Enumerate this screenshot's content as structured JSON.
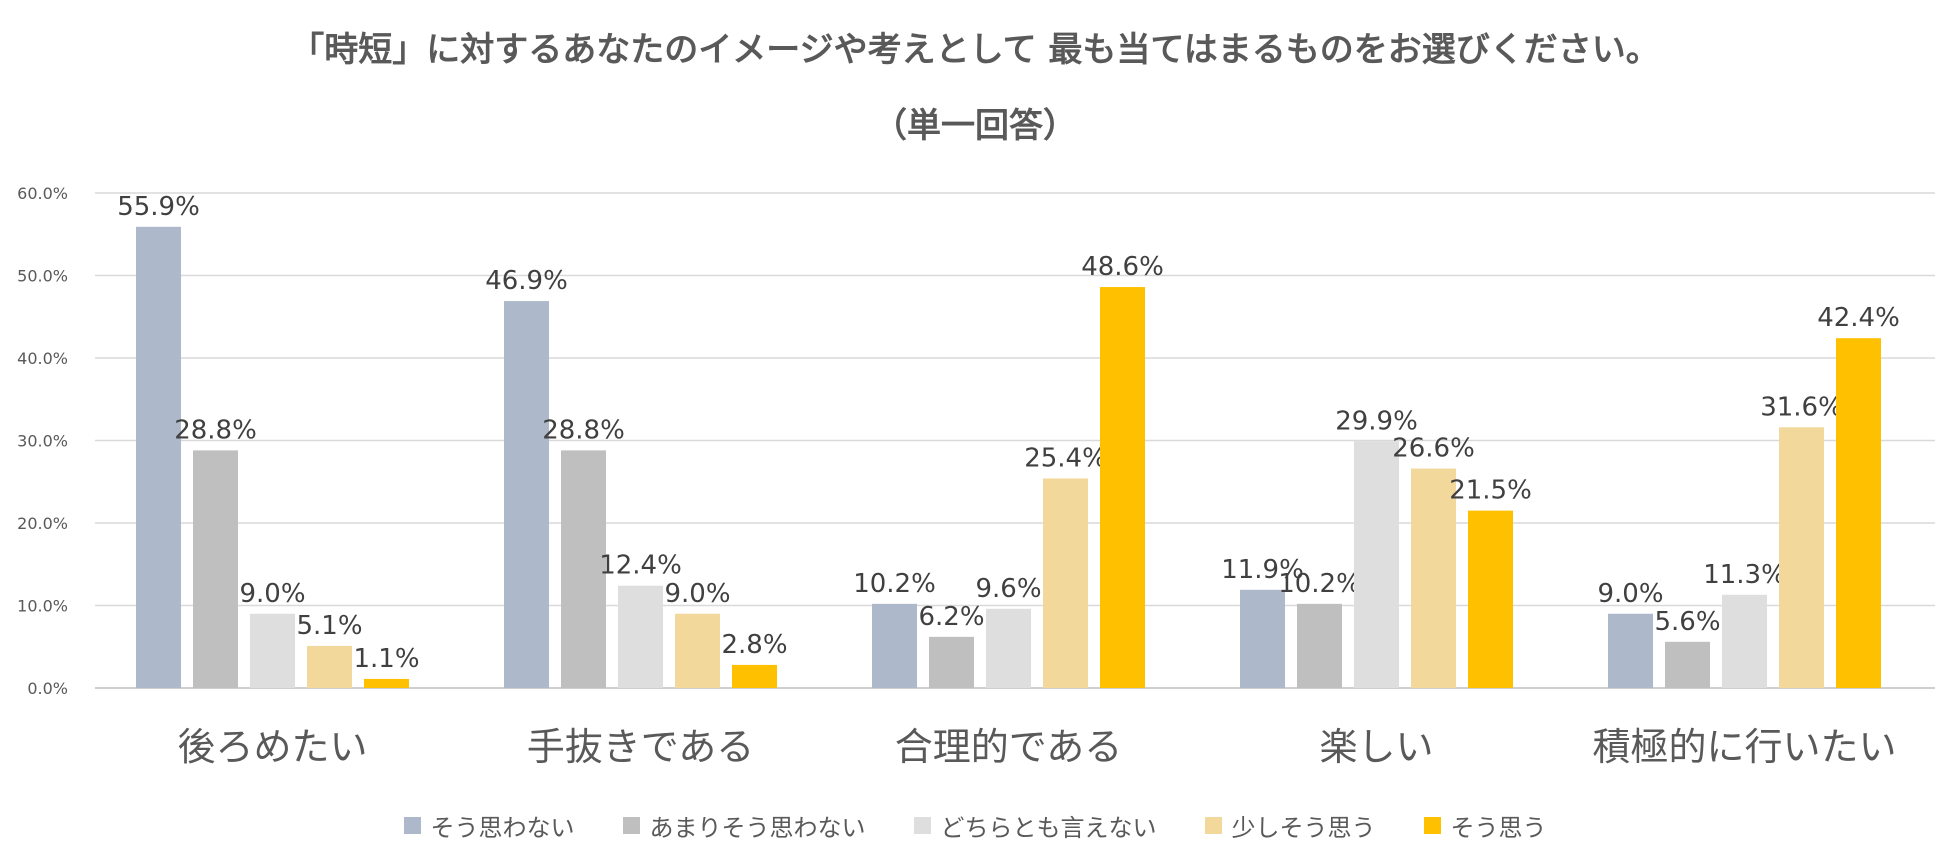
{
  "chart_data": {
    "type": "bar",
    "title": "「時短」に対するあなたのイメージや考えとして 最も当てはまるものをお選びください。",
    "subtitle": "（単一回答）",
    "categories": [
      "後ろめたい",
      "手抜きである",
      "合理的である",
      "楽しい",
      "積極的に行いたい"
    ],
    "series": [
      {
        "name": "そう思わない",
        "color": "#ADB9CA",
        "values": [
          55.9,
          46.9,
          10.2,
          11.9,
          9.0
        ]
      },
      {
        "name": "あまりそう思わない",
        "color": "#BFBFBF",
        "values": [
          28.8,
          28.8,
          6.2,
          10.2,
          5.6
        ]
      },
      {
        "name": "どちらとも言えない",
        "color": "#DEDEDE",
        "values": [
          9.0,
          12.4,
          9.6,
          29.9,
          11.3
        ]
      },
      {
        "name": "少しそう思う",
        "color": "#F2D89B",
        "values": [
          5.1,
          9.0,
          25.4,
          26.6,
          31.6
        ]
      },
      {
        "name": "そう思う",
        "color": "#FFC000",
        "values": [
          1.1,
          2.8,
          48.6,
          21.5,
          42.4
        ]
      }
    ],
    "y_ticks": [
      "0.0%",
      "10.0%",
      "20.0%",
      "30.0%",
      "40.0%",
      "50.0%",
      "60.0%"
    ],
    "ylim": [
      0,
      60
    ],
    "value_suffix": "%",
    "grid": true,
    "legend_position": "bottom"
  }
}
